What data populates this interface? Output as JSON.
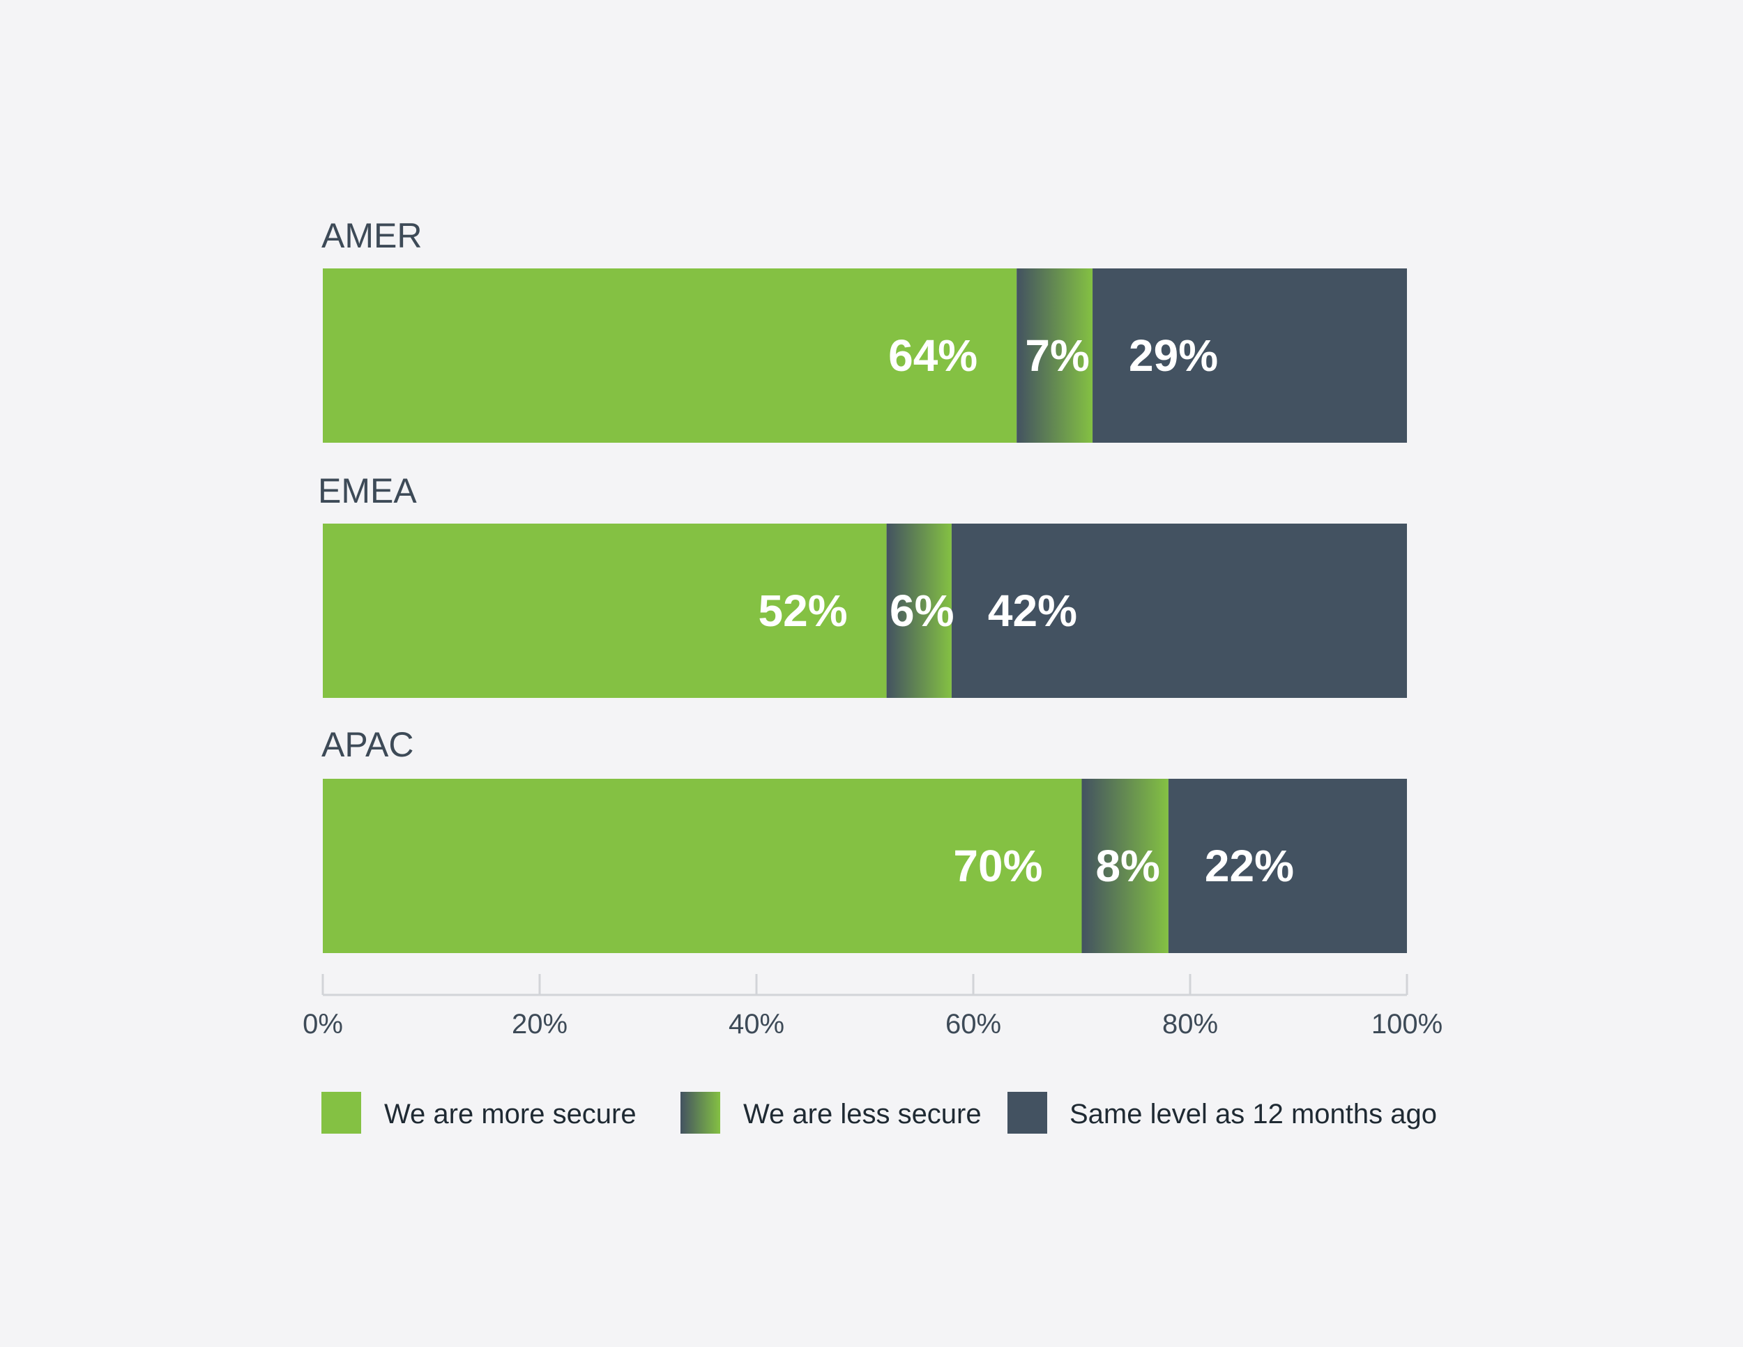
{
  "chart_data": {
    "type": "bar",
    "orientation": "horizontal",
    "stacked": true,
    "categories": [
      "AMER",
      "EMEA",
      "APAC"
    ],
    "series": [
      {
        "name": "We are more secure",
        "values": [
          64,
          52,
          70
        ],
        "labels": [
          "64%",
          "52%",
          "70%"
        ]
      },
      {
        "name": "We are less secure",
        "values": [
          7,
          6,
          8
        ],
        "labels": [
          "7%",
          "6%",
          "8%"
        ]
      },
      {
        "name": "Same level as 12 months ago",
        "values": [
          29,
          42,
          22
        ],
        "labels": [
          "29%",
          "42%",
          "22%"
        ]
      }
    ],
    "x_ticks": [
      "0%",
      "20%",
      "40%",
      "60%",
      "80%",
      "100%"
    ],
    "xlim": [
      0,
      100
    ],
    "grid": false,
    "legend_position": "bottom",
    "colors": {
      "more_secure": "#84c143",
      "less_secure_from": "#435261",
      "less_secure_to": "#84c143",
      "same_level": "#435261",
      "axis": "#d2d4d8",
      "text": "#3d4a57"
    }
  }
}
